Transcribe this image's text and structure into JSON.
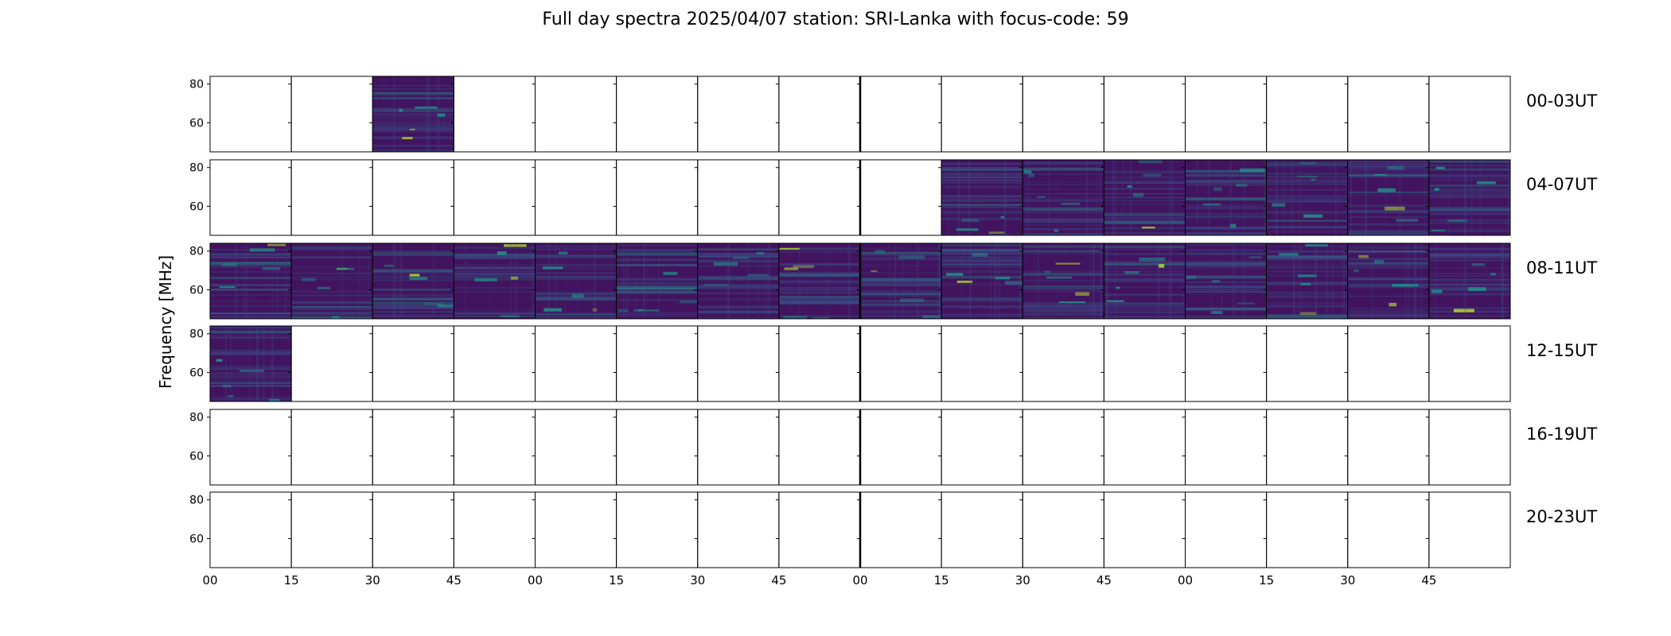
{
  "chart_data": {
    "type": "heatmap",
    "title": "Full day spectra 2025/04/07 station: SRI-Lanka with focus-code: 59",
    "ylabel": "Frequency [MHz]",
    "xlabel": "",
    "y_ticks": [
      60,
      80
    ],
    "ylim": [
      45,
      84
    ],
    "x_tick_labels": [
      "00",
      "15",
      "30",
      "45",
      "00",
      "15",
      "30",
      "45",
      "00",
      "15",
      "30",
      "45",
      "00",
      "15",
      "30",
      "45"
    ],
    "rows": [
      {
        "label": "00-03UT",
        "filled": [
          false,
          false,
          true,
          false,
          false,
          false,
          false,
          false,
          false,
          false,
          false,
          false,
          false,
          false,
          false,
          false
        ]
      },
      {
        "label": "04-07UT",
        "filled": [
          false,
          false,
          false,
          false,
          false,
          false,
          false,
          false,
          false,
          true,
          true,
          true,
          true,
          true,
          true,
          true
        ]
      },
      {
        "label": "08-11UT",
        "filled": [
          true,
          true,
          true,
          true,
          true,
          true,
          true,
          true,
          true,
          true,
          true,
          true,
          true,
          true,
          true,
          true
        ]
      },
      {
        "label": "12-15UT",
        "filled": [
          true,
          false,
          false,
          false,
          false,
          false,
          false,
          false,
          false,
          false,
          false,
          false,
          false,
          false,
          false,
          false
        ]
      },
      {
        "label": "16-19UT",
        "filled": [
          false,
          false,
          false,
          false,
          false,
          false,
          false,
          false,
          false,
          false,
          false,
          false,
          false,
          false,
          false,
          false
        ]
      },
      {
        "label": "20-23UT",
        "filled": [
          false,
          false,
          false,
          false,
          false,
          false,
          false,
          false,
          false,
          false,
          false,
          false,
          false,
          false,
          false,
          false
        ]
      }
    ],
    "grid": false,
    "colormap": {
      "base": "#42145f",
      "mid": "#3b528b",
      "high": "#21918c",
      "peak": "#b5de2b"
    }
  }
}
